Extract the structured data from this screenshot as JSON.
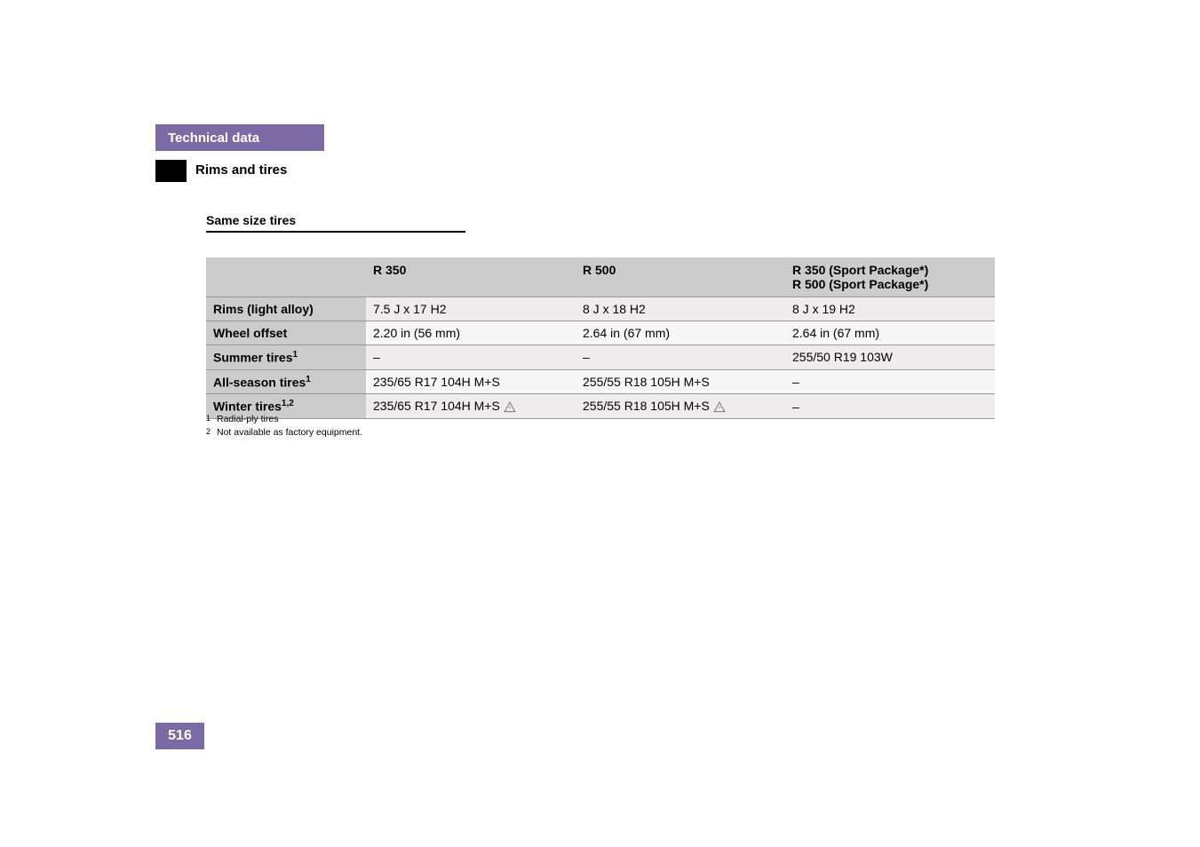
{
  "header": {
    "tab_title": "Technical data",
    "section": "Rims and tires"
  },
  "section_heading": "Same size tires",
  "table": {
    "column_headers": {
      "col1": "",
      "col2": "R 350",
      "col3": "R 500",
      "col4_line1": "R 350 (Sport Package*)",
      "col4_line2": "R 500 (Sport Package*)"
    },
    "rows": [
      {
        "label": "Rims (light alloy)",
        "sup": "",
        "c2": "7.5 J x 17 H2",
        "icon2": false,
        "c3": "8 J x 18 H2",
        "icon3": false,
        "c4": "8 J x 19 H2",
        "icon4": false
      },
      {
        "label": "Wheel offset",
        "sup": "",
        "c2": "2.20 in (56 mm)",
        "icon2": false,
        "c3": "2.64 in (67 mm)",
        "icon3": false,
        "c4": "2.64 in (67 mm)",
        "icon4": false
      },
      {
        "label": "Summer tires",
        "sup": "1",
        "c2": "–",
        "icon2": false,
        "c3": "–",
        "icon3": false,
        "c4": "255/50 R19 103W",
        "icon4": false
      },
      {
        "label": "All-season tires",
        "sup": "1",
        "c2": "235/65 R17 104H M+S",
        "icon2": false,
        "c3": "255/55 R18 105H M+S",
        "icon3": false,
        "c4": "–",
        "icon4": false
      },
      {
        "label": "Winter tires",
        "sup": "1,2",
        "c2": "235/65 R17 104H M+S",
        "icon2": true,
        "c3": "255/55 R18 105H M+S",
        "icon3": true,
        "c4": "–",
        "icon4": false
      }
    ]
  },
  "footnotes": [
    {
      "num": "1",
      "text": "Radial-ply tires"
    },
    {
      "num": "2",
      "text": "Not available as factory equipment."
    }
  ],
  "page_number": "516",
  "colors": {
    "header_bg": "#7b6aa3",
    "black": "#000000",
    "header_cell_bg": "#cccccc"
  }
}
